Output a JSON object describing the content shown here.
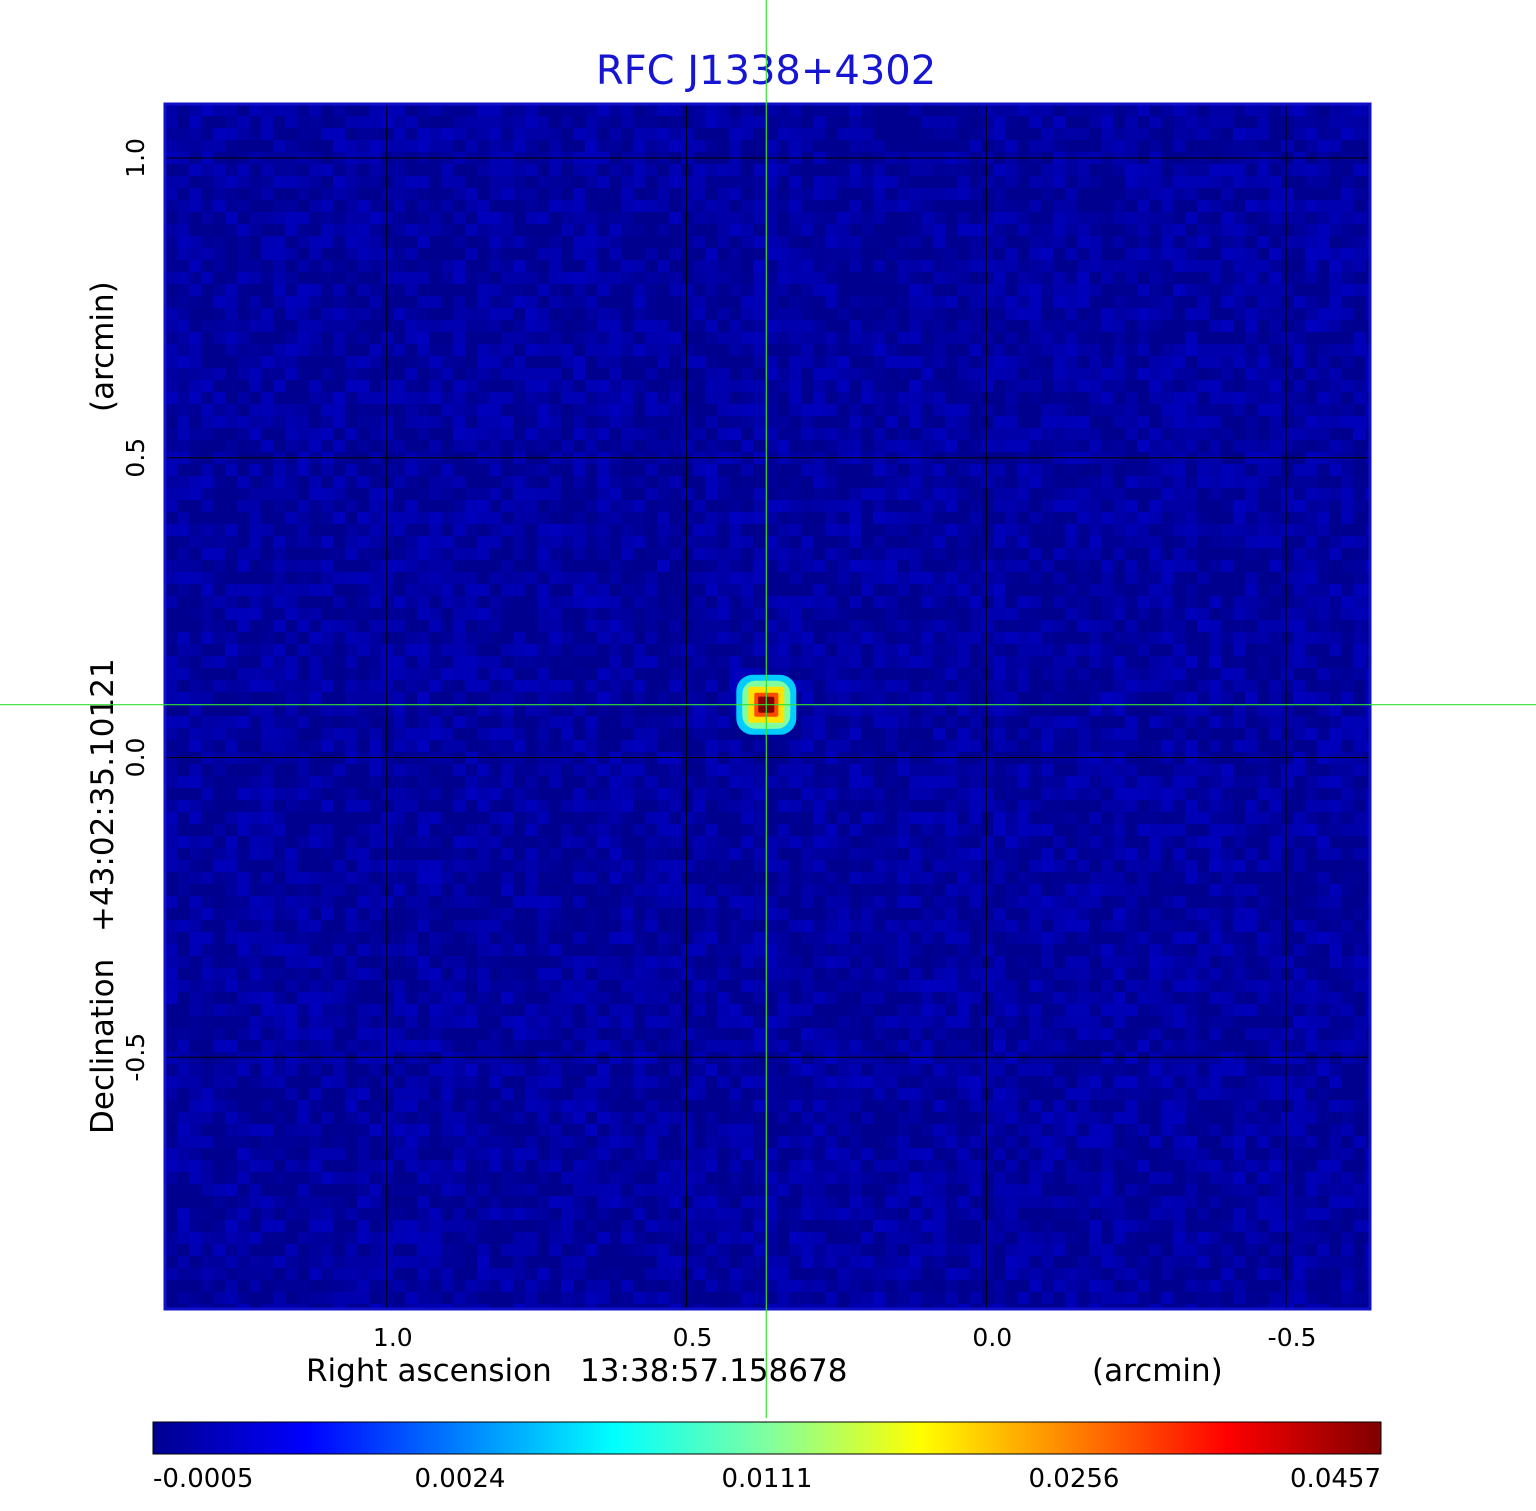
{
  "chart_data": {
    "type": "heatmap",
    "title": "RFC J1338+4302",
    "colors": {
      "title": "#1515d2",
      "crosshair": "#33e033",
      "frame": "#1010c8",
      "grid": "#000000",
      "background_field": "#1a44f5"
    },
    "xlabel": {
      "name": "Right ascension",
      "value": "13:38:57.158678",
      "unit": "(arcmin)"
    },
    "ylabel": {
      "name": "Declination",
      "value": "+43:02:35.10121",
      "unit": "(arcmin)"
    },
    "xlim": [
      1.37,
      -0.64
    ],
    "ylim": [
      -0.92,
      1.09
    ],
    "x_ticks": [
      {
        "value": 1.0,
        "label": "1.0"
      },
      {
        "value": 0.5,
        "label": "0.5"
      },
      {
        "value": 0.0,
        "label": "0.0"
      },
      {
        "value": -0.5,
        "label": "-0.5"
      }
    ],
    "y_ticks": [
      {
        "value": 1.0,
        "label": "1.0"
      },
      {
        "value": 0.5,
        "label": "0.5"
      },
      {
        "value": 0.0,
        "label": "0.0"
      },
      {
        "value": -0.5,
        "label": "-0.5"
      }
    ],
    "grid": true,
    "source": {
      "x": 0.367,
      "y": 0.088,
      "peak": 0.0457
    },
    "crosshair": {
      "x": 0.367,
      "y": 0.088
    },
    "noise_rms_level": -0.0003,
    "colorbar": {
      "orientation": "horizontal",
      "placement": "bottom",
      "ticks": [
        {
          "value": -0.0005,
          "label": "-0.0005"
        },
        {
          "value": 0.0024,
          "label": "0.0024"
        },
        {
          "value": 0.0111,
          "label": "0.0111"
        },
        {
          "value": 0.0256,
          "label": "0.0256"
        },
        {
          "value": 0.0457,
          "label": "0.0457"
        }
      ],
      "colormap": [
        "#00008f",
        "#0000ff",
        "#0080ff",
        "#00ffff",
        "#80ffa0",
        "#ffff00",
        "#ff8000",
        "#ff0000",
        "#800000"
      ]
    }
  }
}
